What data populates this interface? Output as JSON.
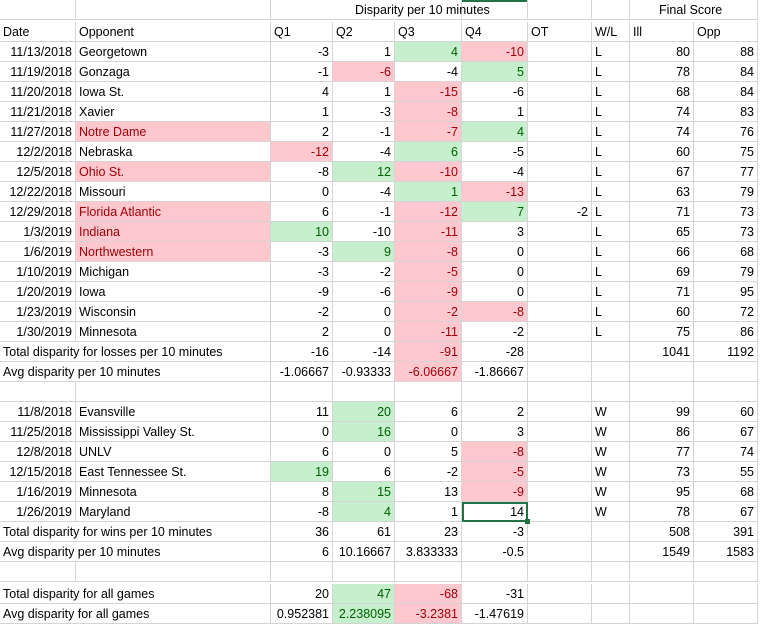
{
  "header1": {
    "disparity_title": "Disparity per 10 minutes",
    "final_score_title": "Final Score"
  },
  "header2": {
    "date": "Date",
    "opponent": "Opponent",
    "q1": "Q1",
    "q2": "Q2",
    "q3": "Q3",
    "q4": "Q4",
    "ot": "OT",
    "wl": "W/L",
    "ill": "Ill",
    "opp": "Opp"
  },
  "losses": [
    {
      "date": "11/13/2018",
      "opponent": "Georgetown",
      "q1": "-3",
      "q2": "1",
      "q3": "4",
      "q4": "-10",
      "ot": "",
      "wl": "L",
      "ill": "80",
      "opp": "88"
    },
    {
      "date": "11/19/2018",
      "opponent": "Gonzaga",
      "q1": "-1",
      "q2": "-6",
      "q3": "-4",
      "q4": "5",
      "ot": "",
      "wl": "L",
      "ill": "78",
      "opp": "84"
    },
    {
      "date": "11/20/2018",
      "opponent": "Iowa St.",
      "q1": "4",
      "q2": "1",
      "q3": "-15",
      "q4": "-6",
      "ot": "",
      "wl": "L",
      "ill": "68",
      "opp": "84"
    },
    {
      "date": "11/21/2018",
      "opponent": "Xavier",
      "q1": "1",
      "q2": "-3",
      "q3": "-8",
      "q4": "1",
      "ot": "",
      "wl": "L",
      "ill": "74",
      "opp": "83"
    },
    {
      "date": "11/27/2018",
      "opponent": "Notre Dame",
      "q1": "2",
      "q2": "-1",
      "q3": "-7",
      "q4": "4",
      "ot": "",
      "wl": "L",
      "ill": "74",
      "opp": "76"
    },
    {
      "date": "12/2/2018",
      "opponent": "Nebraska",
      "q1": "-12",
      "q2": "-4",
      "q3": "6",
      "q4": "-5",
      "ot": "",
      "wl": "L",
      "ill": "60",
      "opp": "75"
    },
    {
      "date": "12/5/2018",
      "opponent": "Ohio St.",
      "q1": "-8",
      "q2": "12",
      "q3": "-10",
      "q4": "-4",
      "ot": "",
      "wl": "L",
      "ill": "67",
      "opp": "77"
    },
    {
      "date": "12/22/2018",
      "opponent": "Missouri",
      "q1": "0",
      "q2": "-4",
      "q3": "1",
      "q4": "-13",
      "ot": "",
      "wl": "L",
      "ill": "63",
      "opp": "79"
    },
    {
      "date": "12/29/2018",
      "opponent": "Florida Atlantic",
      "q1": "6",
      "q2": "-1",
      "q3": "-12",
      "q4": "7",
      "ot": "-2",
      "wl": "L",
      "ill": "71",
      "opp": "73"
    },
    {
      "date": "1/3/2019",
      "opponent": "Indiana",
      "q1": "10",
      "q2": "-10",
      "q3": "-11",
      "q4": "3",
      "ot": "",
      "wl": "L",
      "ill": "65",
      "opp": "73"
    },
    {
      "date": "1/6/2019",
      "opponent": "Northwestern",
      "q1": "-3",
      "q2": "9",
      "q3": "-8",
      "q4": "0",
      "ot": "",
      "wl": "L",
      "ill": "66",
      "opp": "68"
    },
    {
      "date": "1/10/2019",
      "opponent": "Michigan",
      "q1": "-3",
      "q2": "-2",
      "q3": "-5",
      "q4": "0",
      "ot": "",
      "wl": "L",
      "ill": "69",
      "opp": "79"
    },
    {
      "date": "1/20/2019",
      "opponent": "Iowa",
      "q1": "-9",
      "q2": "-6",
      "q3": "-9",
      "q4": "0",
      "ot": "",
      "wl": "L",
      "ill": "71",
      "opp": "95"
    },
    {
      "date": "1/23/2019",
      "opponent": "Wisconsin",
      "q1": "-2",
      "q2": "0",
      "q3": "-2",
      "q4": "-8",
      "ot": "",
      "wl": "L",
      "ill": "60",
      "opp": "72"
    },
    {
      "date": "1/30/2019",
      "opponent": "Minnesota",
      "q1": "2",
      "q2": "0",
      "q3": "-11",
      "q4": "-2",
      "ot": "",
      "wl": "L",
      "ill": "75",
      "opp": "86"
    }
  ],
  "losses_total": {
    "label": "Total disparity for losses per 10 minutes",
    "q1": "-16",
    "q2": "-14",
    "q3": "-91",
    "q4": "-28",
    "ill": "1041",
    "opp": "1192"
  },
  "losses_avg": {
    "label": "Avg disparity per 10 minutes",
    "q1": "-1.06667",
    "q2": "-0.93333",
    "q3": "-6.06667",
    "q4": "-1.86667"
  },
  "wins": [
    {
      "date": "11/8/2018",
      "opponent": "Evansville",
      "q1": "11",
      "q2": "20",
      "q3": "6",
      "q4": "2",
      "ot": "",
      "wl": "W",
      "ill": "99",
      "opp": "60"
    },
    {
      "date": "11/25/2018",
      "opponent": "Mississippi Valley St.",
      "q1": "0",
      "q2": "16",
      "q3": "0",
      "q4": "3",
      "ot": "",
      "wl": "W",
      "ill": "86",
      "opp": "67"
    },
    {
      "date": "12/8/2018",
      "opponent": "UNLV",
      "q1": "6",
      "q2": "0",
      "q3": "5",
      "q4": "-8",
      "ot": "",
      "wl": "W",
      "ill": "77",
      "opp": "74"
    },
    {
      "date": "12/15/2018",
      "opponent": "East Tennessee St.",
      "q1": "19",
      "q2": "6",
      "q3": "-2",
      "q4": "-5",
      "ot": "",
      "wl": "W",
      "ill": "73",
      "opp": "55"
    },
    {
      "date": "1/16/2019",
      "opponent": "Minnesota",
      "q1": "8",
      "q2": "15",
      "q3": "13",
      "q4": "-9",
      "ot": "",
      "wl": "W",
      "ill": "95",
      "opp": "68"
    },
    {
      "date": "1/26/2019",
      "opponent": "Maryland",
      "q1": "-8",
      "q2": "4",
      "q3": "1",
      "q4": "14",
      "ot": "",
      "wl": "W",
      "ill": "78",
      "opp": "67"
    }
  ],
  "wins_total": {
    "label": "Total disparity for wins per 10 minutes",
    "q1": "36",
    "q2": "61",
    "q3": "23",
    "q4": "-3",
    "ill": "508",
    "opp": "391"
  },
  "wins_avg": {
    "label": "Avg disparity per 10 minutes",
    "q1": "6",
    "q2": "10.16667",
    "q3": "3.833333",
    "q4": "-0.5",
    "ill": "1549",
    "opp": "1583"
  },
  "all_total": {
    "label": "Total disparity for all games",
    "q1": "20",
    "q2": "47",
    "q3": "-68",
    "q4": "-31"
  },
  "all_avg": {
    "label": "Avg disparity for all games",
    "q1": "0.952381",
    "q2": "2.238095",
    "q3": "-3.2381",
    "q4": "-1.47619"
  },
  "colors": {
    "red_fill": "#ffc7ce",
    "red_text": "#9c0006",
    "green_fill": "#c6efce",
    "green_text": "#006100",
    "selection": "#217346"
  }
}
